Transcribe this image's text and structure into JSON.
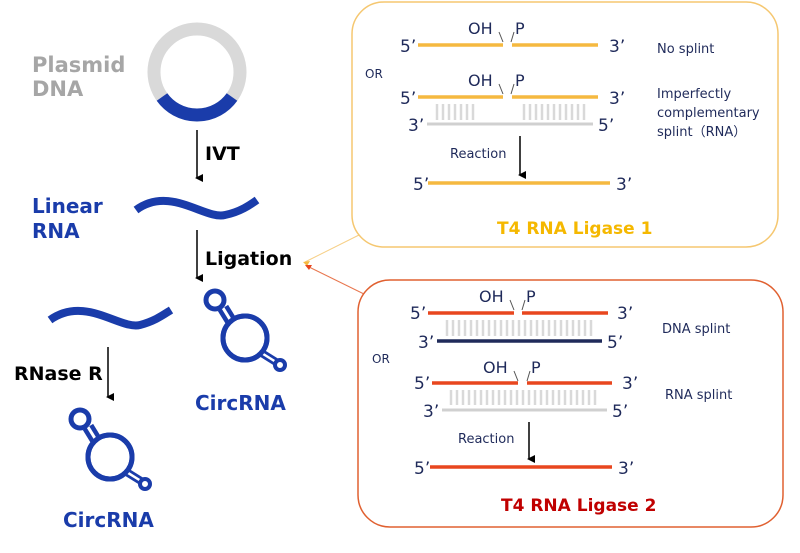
{
  "left": {
    "plasmid_line1": "Plasmid",
    "plasmid_line2": "DNA",
    "ivt": "IVT",
    "linear_line1": "Linear",
    "linear_line2": "RNA",
    "ligation": "Ligation",
    "rnase": "RNase R",
    "circ1": "CircRNA",
    "circ2": "CircRNA"
  },
  "ligase1": {
    "title": "T4 RNA Ligase 1",
    "or": "OR",
    "oh": "OH",
    "p": "P",
    "five": "5’",
    "three": "3’",
    "no_splint": "No splint",
    "imperfect_1": "Imperfectly",
    "imperfect_2": "complementary",
    "imperfect_3": "splint（RNA）",
    "reaction": "Reaction"
  },
  "ligase2": {
    "title": "T4 RNA Ligase 2",
    "or": "OR",
    "oh": "OH",
    "p": "P",
    "five": "5’",
    "three": "3’",
    "dna_splint": "DNA splint",
    "rna_splint": "RNA splint",
    "reaction": "Reaction"
  },
  "colors": {
    "blue": "#1a3caa",
    "gray": "#a6a6a6",
    "ligase1": "#f5b940",
    "ligase1_title": "#f5b800",
    "ligase2": "#e8461e",
    "ligase2_title": "#c00000",
    "navy": "#1f2a5a"
  }
}
